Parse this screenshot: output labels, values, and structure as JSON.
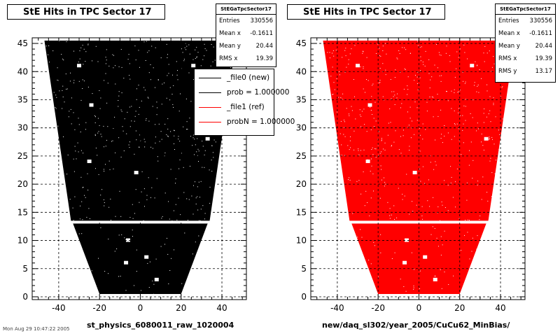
{
  "chart_data": [
    {
      "type": "scatter",
      "title": "StE Hits in TPC Sector 17",
      "xlabel": "st_physics_6080011_raw_1020004",
      "ylabel": "",
      "xlim": [
        -53,
        52
      ],
      "ylim": [
        -0.5,
        46
      ],
      "xticks": [
        -40,
        -20,
        0,
        20,
        40
      ],
      "yticks": [
        0,
        5,
        10,
        15,
        20,
        25,
        30,
        35,
        40,
        45
      ],
      "grid": true,
      "marker_color": "#000000",
      "regions": [
        {
          "name": "outer",
          "y_range": [
            13.5,
            45.5
          ],
          "half_width_at_bottom": 34,
          "half_width_at_top": 47
        },
        {
          "name": "inner",
          "y_range": [
            0.5,
            13.0
          ],
          "half_width_at_bottom": 20,
          "half_width_at_top": 33
        }
      ],
      "stats": {
        "name": "StEGaTpcSector17",
        "entries": [
          {
            "label": "Entries",
            "value": "330556"
          },
          {
            "label": "Mean x",
            "value": "-0.1611"
          },
          {
            "label": "Mean y",
            "value": "20.44"
          },
          {
            "label": "RMS x",
            "value": "19.39"
          }
        ]
      },
      "legend": [
        {
          "label": "_file0 (new)",
          "color": "#000000"
        },
        {
          "label": "prob = 1.000000",
          "color": "#000000"
        },
        {
          "label": "_file1 (ref)",
          "color": "#ff0000"
        },
        {
          "label": "probN = 1.000000",
          "color": "#ff0000"
        }
      ]
    },
    {
      "type": "scatter",
      "title": "StE Hits in TPC Sector 17",
      "xlabel": "new/daq_sl302/year_2005/CuCu62_MinBias/",
      "ylabel": "",
      "xlim": [
        -53,
        52
      ],
      "ylim": [
        -0.5,
        46
      ],
      "xticks": [
        -40,
        -20,
        0,
        20,
        40
      ],
      "yticks": [
        0,
        5,
        10,
        15,
        20,
        25,
        30,
        35,
        40,
        45
      ],
      "grid": true,
      "marker_color": "#ff0000",
      "regions": [
        {
          "name": "outer",
          "y_range": [
            13.5,
            45.5
          ],
          "half_width_at_bottom": 34,
          "half_width_at_top": 47
        },
        {
          "name": "inner",
          "y_range": [
            0.5,
            13.0
          ],
          "half_width_at_bottom": 20,
          "half_width_at_top": 33
        }
      ],
      "stats": {
        "name": "StEGaTpcSector17",
        "entries": [
          {
            "label": "Entries",
            "value": "330556"
          },
          {
            "label": "Mean x",
            "value": "-0.1611"
          },
          {
            "label": "Mean y",
            "value": "20.44"
          },
          {
            "label": "RMS x",
            "value": "19.39"
          },
          {
            "label": "RMS y",
            "value": "13.17"
          }
        ]
      }
    }
  ],
  "footer_text": "Mon Aug 29 10:47:22 2005"
}
